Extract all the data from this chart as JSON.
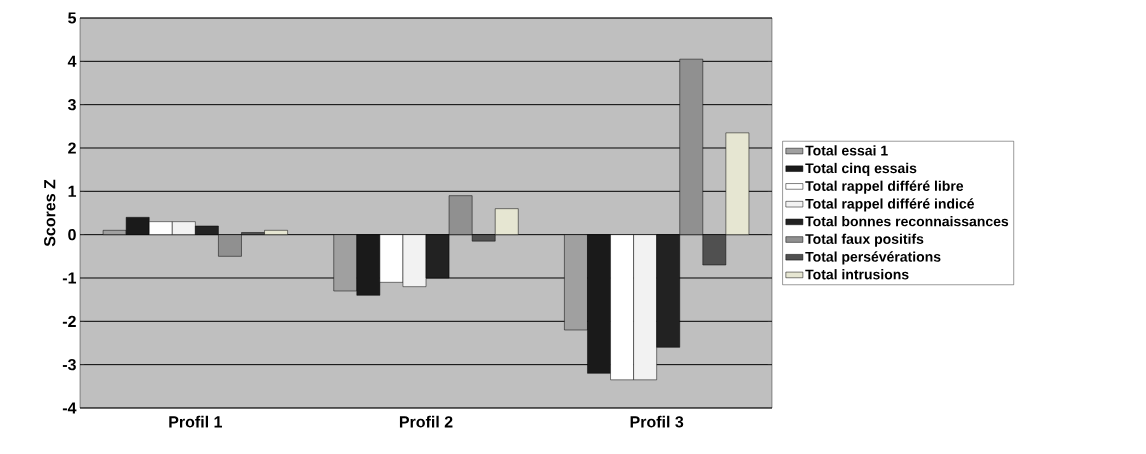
{
  "chart_data": {
    "type": "bar",
    "ylabel": "Scores Z",
    "categories": [
      "Profil 1",
      "Profil 2",
      "Profil 3"
    ],
    "series": [
      {
        "name": "Total essai 1",
        "color": "#a0a0a0",
        "values": [
          0.1,
          -1.3,
          -2.2
        ]
      },
      {
        "name": "Total cinq essais",
        "color": "#1a1a1a",
        "values": [
          0.4,
          -1.4,
          -3.2
        ]
      },
      {
        "name": "Total rappel différé libre",
        "color": "#ffffff",
        "values": [
          0.3,
          -1.1,
          -3.35
        ]
      },
      {
        "name": "Total rappel différé indicé",
        "color": "#f2f2f2",
        "values": [
          0.3,
          -1.2,
          -3.35
        ]
      },
      {
        "name": "Total bonnes reconnaissances",
        "color": "#222222",
        "values": [
          0.2,
          -1.0,
          -2.6
        ]
      },
      {
        "name": "Total faux positifs",
        "color": "#909090",
        "values": [
          -0.5,
          0.9,
          4.05
        ]
      },
      {
        "name": "Total persévérations",
        "color": "#505050",
        "values": [
          0.05,
          -0.15,
          -0.7
        ]
      },
      {
        "name": "Total intrusions",
        "color": "#e6e6d2",
        "values": [
          0.1,
          0.6,
          2.35
        ]
      }
    ],
    "ylim": [
      -4,
      5
    ],
    "yticks": [
      -4,
      -3,
      -2,
      -1,
      0,
      1,
      2,
      3,
      4,
      5
    ],
    "grid": "y",
    "legend": "right"
  }
}
